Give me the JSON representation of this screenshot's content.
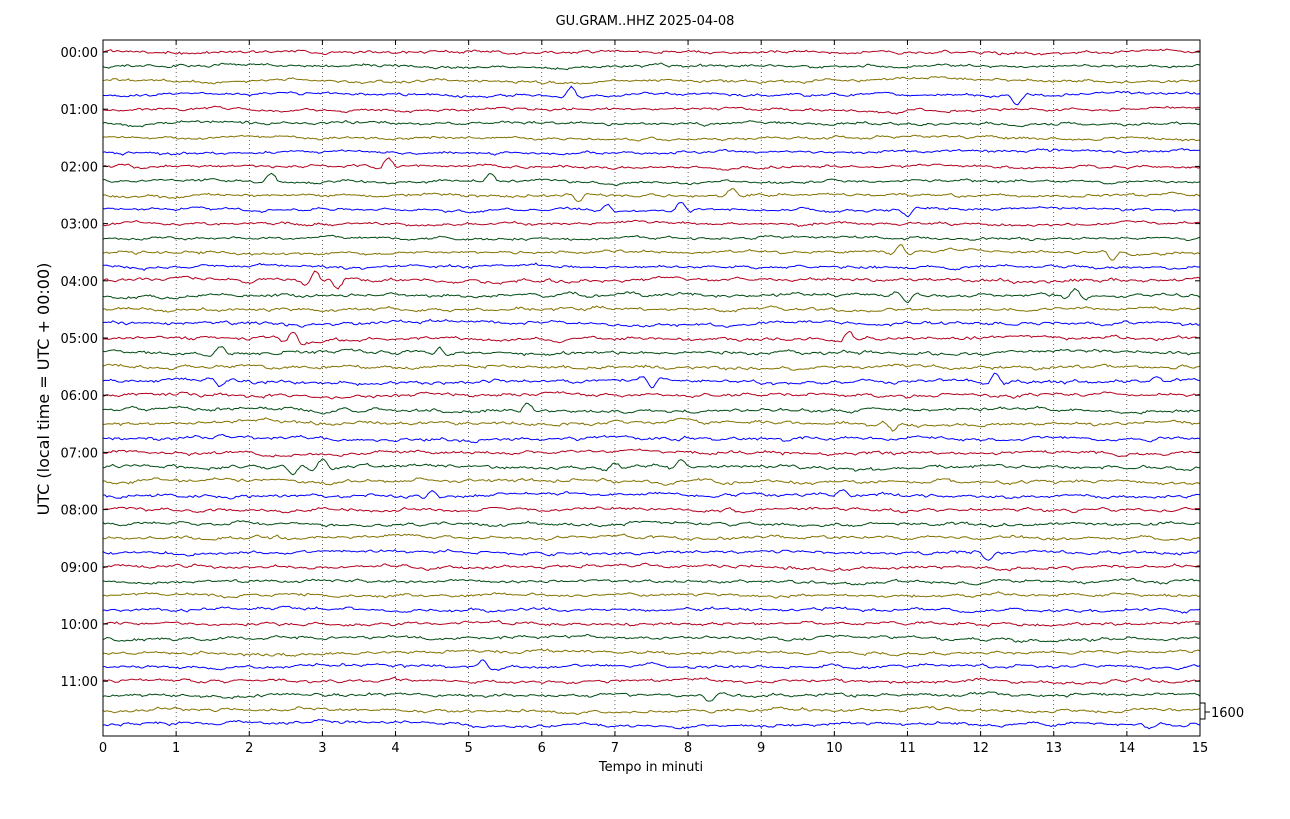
{
  "chart_data": {
    "type": "line",
    "title": "GU.GRAM..HHZ 2025-04-08",
    "xlabel": "Tempo in minuti",
    "ylabel": "UTC (local time = UTC + 00:00)",
    "xlim": [
      0,
      15
    ],
    "x_ticks": [
      "0",
      "1",
      "2",
      "3",
      "4",
      "5",
      "6",
      "7",
      "8",
      "9",
      "10",
      "11",
      "12",
      "13",
      "14",
      "15"
    ],
    "y_tick_labels": [
      "00:00",
      "01:00",
      "02:00",
      "03:00",
      "04:00",
      "05:00",
      "06:00",
      "07:00",
      "08:00",
      "09:00",
      "10:00",
      "11:00"
    ],
    "trace_interval_minutes": 15,
    "trace_count": 48,
    "trace_colors": [
      "#b2001e",
      "#004c12",
      "#847200",
      "#0000ff"
    ],
    "vertical_grid": "dotted",
    "scale_label": "1600",
    "events": [
      {
        "trace": 3,
        "minute": 6.4,
        "amp": 1.0
      },
      {
        "trace": 3,
        "minute": 12.5,
        "amp": -1.0
      },
      {
        "trace": 8,
        "minute": 3.9,
        "amp": 0.9
      },
      {
        "trace": 9,
        "minute": 2.3,
        "amp": 0.7
      },
      {
        "trace": 9,
        "minute": 5.3,
        "amp": 0.8
      },
      {
        "trace": 10,
        "minute": 6.5,
        "amp": -0.8
      },
      {
        "trace": 10,
        "minute": 8.6,
        "amp": 0.8
      },
      {
        "trace": 11,
        "minute": 6.9,
        "amp": 0.8
      },
      {
        "trace": 11,
        "minute": 7.9,
        "amp": 0.9
      },
      {
        "trace": 11,
        "minute": 11.0,
        "amp": -0.8
      },
      {
        "trace": 14,
        "minute": 10.9,
        "amp": 0.9
      },
      {
        "trace": 14,
        "minute": 13.8,
        "amp": -0.8
      },
      {
        "trace": 16,
        "minute": 2.9,
        "amp": 1.2
      },
      {
        "trace": 16,
        "minute": 3.2,
        "amp": -1.0
      },
      {
        "trace": 17,
        "minute": 11.0,
        "amp": -0.9
      },
      {
        "trace": 17,
        "minute": 13.3,
        "amp": 1.0
      },
      {
        "trace": 20,
        "minute": 2.6,
        "amp": 0.9
      },
      {
        "trace": 20,
        "minute": 10.2,
        "amp": 1.0
      },
      {
        "trace": 21,
        "minute": 1.6,
        "amp": 0.8
      },
      {
        "trace": 21,
        "minute": 4.6,
        "amp": 0.8
      },
      {
        "trace": 23,
        "minute": 1.6,
        "amp": -0.8
      },
      {
        "trace": 23,
        "minute": 7.5,
        "amp": -0.9
      },
      {
        "trace": 23,
        "minute": 12.2,
        "amp": 1.0
      },
      {
        "trace": 23,
        "minute": 14.4,
        "amp": 0.6
      },
      {
        "trace": 25,
        "minute": 5.8,
        "amp": 0.8
      },
      {
        "trace": 26,
        "minute": 10.8,
        "amp": -0.9
      },
      {
        "trace": 29,
        "minute": 2.6,
        "amp": -1.0
      },
      {
        "trace": 29,
        "minute": 3.0,
        "amp": 1.0
      },
      {
        "trace": 29,
        "minute": 7.0,
        "amp": 0.7
      },
      {
        "trace": 29,
        "minute": 7.9,
        "amp": 0.8
      },
      {
        "trace": 31,
        "minute": 4.5,
        "amp": 0.7
      },
      {
        "trace": 31,
        "minute": 10.1,
        "amp": 0.7
      },
      {
        "trace": 35,
        "minute": 12.1,
        "amp": -0.8
      },
      {
        "trace": 43,
        "minute": 5.2,
        "amp": 0.8
      },
      {
        "trace": 45,
        "minute": 8.3,
        "amp": -0.6
      },
      {
        "trace": 47,
        "minute": 14.3,
        "amp": -0.4
      }
    ]
  }
}
